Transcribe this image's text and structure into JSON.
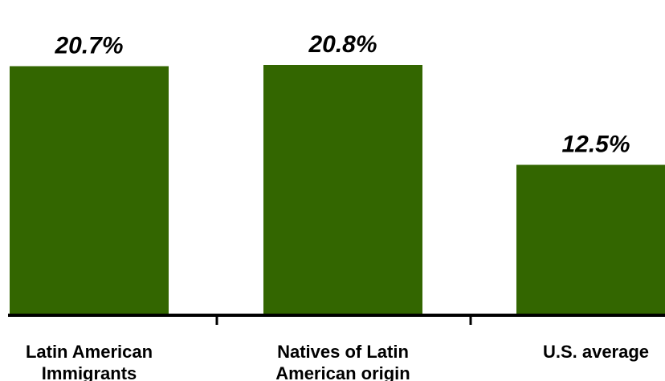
{
  "chart_data": {
    "type": "bar",
    "title": "",
    "xlabel": "",
    "ylabel": "",
    "categories": [
      [
        "Latin American",
        "Immigrants"
      ],
      [
        "Natives of Latin",
        "American origin"
      ],
      [
        "U.S. average"
      ]
    ],
    "values": [
      20.7,
      20.8,
      12.5
    ],
    "value_labels": [
      "20.7%",
      "20.8%",
      "12.5%"
    ],
    "ylim": [
      0,
      25
    ],
    "grid": false,
    "legend": "none",
    "colors": {
      "bar": "#336600",
      "axis": "#000000"
    }
  }
}
